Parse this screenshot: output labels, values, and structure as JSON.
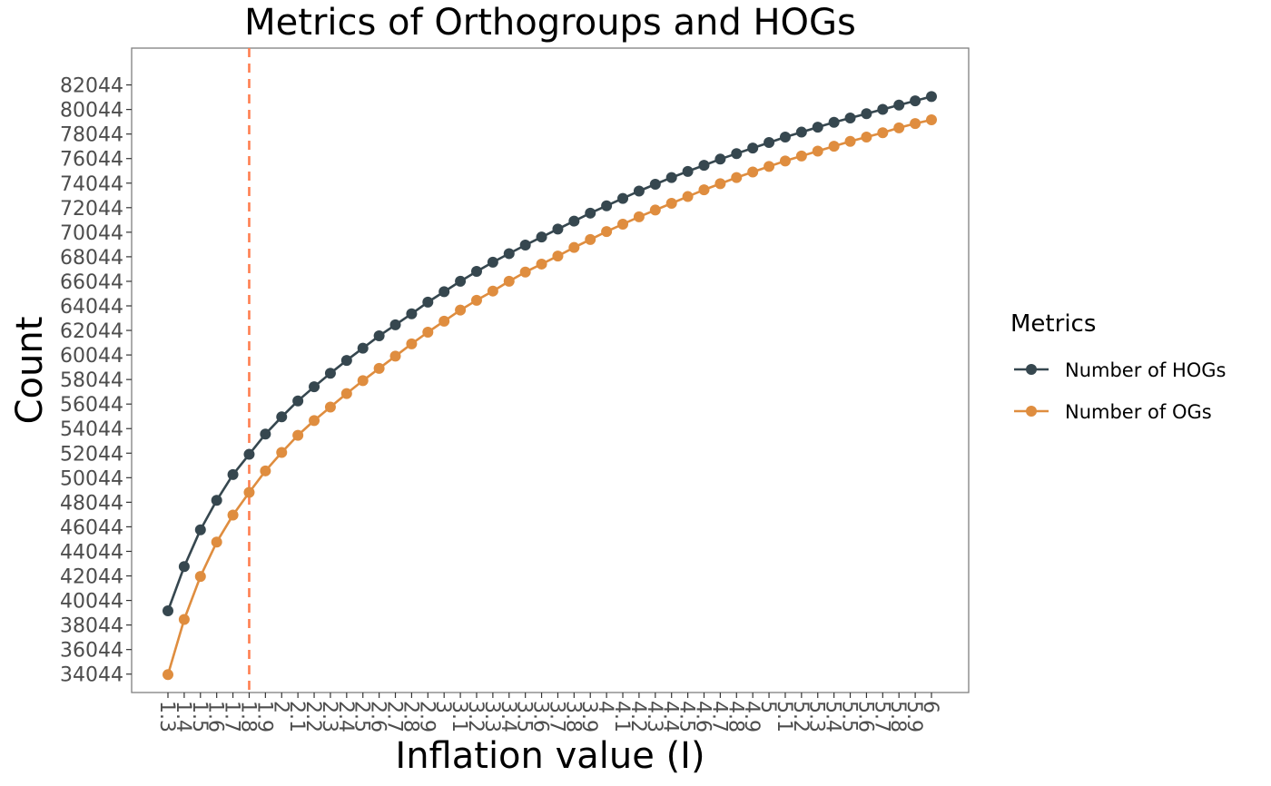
{
  "chart_data": {
    "type": "line",
    "title": "Metrics of Orthogroups and HOGs",
    "xlabel": "Inflation value (I)",
    "ylabel": "Count",
    "legend_title": "Metrics",
    "legend_position": "right",
    "grid": false,
    "categories": [
      "1.3",
      "1.4",
      "1.5",
      "1.6",
      "1.7",
      "1.8",
      "1.9",
      "2",
      "2.1",
      "2.2",
      "2.3",
      "2.4",
      "2.5",
      "2.6",
      "2.7",
      "2.8",
      "2.9",
      "3",
      "3.1",
      "3.2",
      "3.3",
      "3.4",
      "3.5",
      "3.6",
      "3.7",
      "3.8",
      "3.9",
      "4",
      "4.1",
      "4.2",
      "4.3",
      "4.4",
      "4.5",
      "4.6",
      "4.7",
      "4.8",
      "4.9",
      "5",
      "5.1",
      "5.2",
      "5.3",
      "5.4",
      "5.5",
      "5.6",
      "5.7",
      "5.8",
      "5.9",
      "6"
    ],
    "yticks": [
      34044,
      36044,
      38044,
      40044,
      42044,
      44044,
      46044,
      48044,
      50044,
      52044,
      54044,
      56044,
      58044,
      60044,
      62044,
      64044,
      66044,
      68044,
      70044,
      72044,
      74044,
      76044,
      78044,
      80044,
      82044
    ],
    "ylim": [
      32544,
      85044
    ],
    "vline": {
      "x": "1.8",
      "color": "#ff7f50",
      "style": "dashed"
    },
    "series": [
      {
        "name": "Number of HOGs",
        "color": "#36474f",
        "values": [
          39200,
          42800,
          45800,
          48200,
          50300,
          51950,
          53600,
          55000,
          56300,
          57450,
          58550,
          59600,
          60600,
          61600,
          62500,
          63400,
          64350,
          65200,
          66050,
          66850,
          67600,
          68300,
          69000,
          69650,
          70300,
          70950,
          71600,
          72200,
          72800,
          73400,
          73950,
          74500,
          75000,
          75500,
          76000,
          76450,
          76900,
          77350,
          77800,
          78200,
          78600,
          79000,
          79350,
          79700,
          80050,
          80400,
          80750,
          81100
        ]
      },
      {
        "name": "Number of OGs",
        "color": "#df8d3f",
        "values": [
          34000,
          38500,
          42000,
          44800,
          47000,
          48850,
          50600,
          52100,
          53500,
          54700,
          55800,
          56900,
          57950,
          58950,
          59950,
          60950,
          61900,
          62800,
          63700,
          64500,
          65250,
          66050,
          66800,
          67450,
          68100,
          68800,
          69450,
          70100,
          70700,
          71300,
          71850,
          72400,
          72950,
          73500,
          74000,
          74500,
          74950,
          75400,
          75850,
          76250,
          76650,
          77050,
          77450,
          77800,
          78150,
          78550,
          78900,
          79200
        ]
      }
    ]
  }
}
